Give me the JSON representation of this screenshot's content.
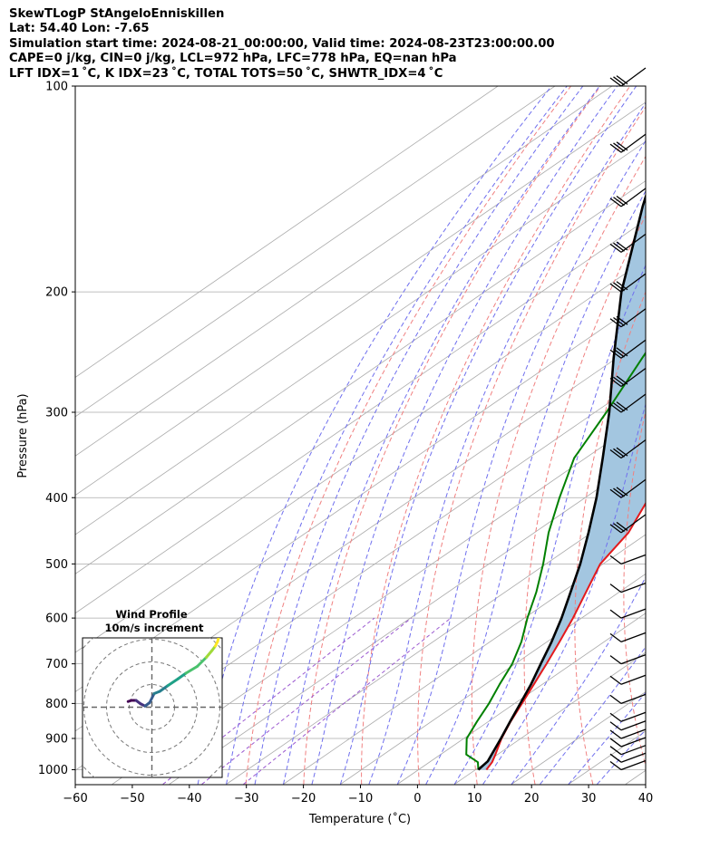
{
  "header": {
    "line1": "SkewTLogP StAngeloEnniskillen",
    "line2": "Lat: 54.40   Lon: -7.65",
    "line3": "Simulation start time: 2024-08-21_00:00:00, Valid time: 2024-08-23T23:00:00.00",
    "line4": "CAPE=0 j/kg, CIN=0 j/kg, LCL=972 hPa, LFC=778 hPa, EQ=nan hPa",
    "line5": "LFT IDX=1 ˚C, K IDX=23 ˚C, TOTAL TOTS=50 ˚C, SHWTR_IDX=4 ˚C"
  },
  "colors": {
    "temperature": "#e41a1c",
    "dewpoint": "#008000",
    "parcel": "#000000",
    "cape_fill": "#a3c6e0",
    "dry_adiabat": "#f08080",
    "moist_adiabat": "#6f6fee",
    "mixing_ratio": "#9b59d0",
    "isotherm": "#aaaaaa"
  },
  "chart_data": {
    "type": "skewt",
    "xlabel": "Temperature (˚C)",
    "ylabel": "Pressure (hPa)",
    "xlim": [
      -60,
      40
    ],
    "ylim": [
      1035,
      100
    ],
    "xticks": [
      "−60",
      "−50",
      "−40",
      "−30",
      "−20",
      "−10",
      "0",
      "10",
      "20",
      "30",
      "40"
    ],
    "yticks": [
      "100",
      "200",
      "300",
      "400",
      "500",
      "600",
      "700",
      "800",
      "900",
      "1000"
    ],
    "grid": true,
    "temperature_profile": [
      {
        "p": 1000,
        "t": 11.9
      },
      {
        "p": 975,
        "t": 11.0
      },
      {
        "p": 950,
        "t": 9.6
      },
      {
        "p": 900,
        "t": 6.6
      },
      {
        "p": 850,
        "t": 3.9
      },
      {
        "p": 800,
        "t": 1.3
      },
      {
        "p": 750,
        "t": -1.5
      },
      {
        "p": 700,
        "t": -4.5
      },
      {
        "p": 650,
        "t": -7.8
      },
      {
        "p": 600,
        "t": -11.5
      },
      {
        "p": 550,
        "t": -15.8
      },
      {
        "p": 500,
        "t": -20.5
      },
      {
        "p": 450,
        "t": -23.5
      },
      {
        "p": 400,
        "t": -28.8
      },
      {
        "p": 350,
        "t": -35.0
      },
      {
        "p": 300,
        "t": -42.8
      },
      {
        "p": 250,
        "t": -49.5
      },
      {
        "p": 200,
        "t": -55.0
      },
      {
        "p": 150,
        "t": -58.0
      },
      {
        "p": 100,
        "t": -62.0
      }
    ],
    "dewpoint_profile": [
      {
        "p": 1000,
        "t": 10.5
      },
      {
        "p": 975,
        "t": 8.5
      },
      {
        "p": 950,
        "t": 4.5
      },
      {
        "p": 900,
        "t": 0.5
      },
      {
        "p": 850,
        "t": -2.0
      },
      {
        "p": 800,
        "t": -4.5
      },
      {
        "p": 750,
        "t": -7.5
      },
      {
        "p": 700,
        "t": -10.5
      },
      {
        "p": 650,
        "t": -14.5
      },
      {
        "p": 600,
        "t": -19.5
      },
      {
        "p": 550,
        "t": -24.5
      },
      {
        "p": 500,
        "t": -30.5
      },
      {
        "p": 450,
        "t": -37.5
      },
      {
        "p": 400,
        "t": -44.5
      },
      {
        "p": 350,
        "t": -52.0
      },
      {
        "p": 300,
        "t": -58.0
      },
      {
        "p": 250,
        "t": -65.5
      },
      {
        "p": 200,
        "t": -74.5
      },
      {
        "p": 175,
        "t": -80.5
      },
      {
        "p": 150,
        "t": -80.0
      },
      {
        "p": 100,
        "t": -83.0
      }
    ],
    "parcel_profile": [
      {
        "p": 1000,
        "t": 10.5
      },
      {
        "p": 972,
        "t": 10.0
      },
      {
        "p": 900,
        "t": 6.5
      },
      {
        "p": 850,
        "t": 3.8
      },
      {
        "p": 800,
        "t": 1.0
      },
      {
        "p": 750,
        "t": -2.0
      },
      {
        "p": 700,
        "t": -5.5
      },
      {
        "p": 650,
        "t": -9.2
      },
      {
        "p": 600,
        "t": -13.5
      },
      {
        "p": 550,
        "t": -18.5
      },
      {
        "p": 500,
        "t": -24.0
      },
      {
        "p": 450,
        "t": -30.5
      },
      {
        "p": 400,
        "t": -38.0
      },
      {
        "p": 350,
        "t": -47.0
      },
      {
        "p": 300,
        "t": -57.5
      },
      {
        "p": 250,
        "t": -70.5
      },
      {
        "p": 200,
        "t": -86.0
      },
      {
        "p": 150,
        "t": -104.0
      },
      {
        "p": 100,
        "t": -128.0
      }
    ],
    "wind_barb_pressures": [
      1000,
      975,
      950,
      925,
      900,
      875,
      850,
      800,
      750,
      700,
      650,
      600,
      550,
      500,
      450,
      400,
      350,
      300,
      275,
      250,
      225,
      200,
      175,
      150,
      125,
      100
    ],
    "hodograph": {
      "title": "Wind Profile",
      "subtitle": "10m/s increment",
      "u": [
        -10.5,
        -9,
        -7,
        -5,
        -3,
        -1,
        1,
        3.5,
        7,
        11.5,
        15,
        20,
        24,
        26.5,
        28,
        29,
        29.5
      ],
      "v": [
        2.5,
        3,
        3,
        1.5,
        0.5,
        2,
        6,
        7,
        9.5,
        12.5,
        15,
        18,
        22,
        25,
        27,
        29,
        31
      ]
    }
  }
}
